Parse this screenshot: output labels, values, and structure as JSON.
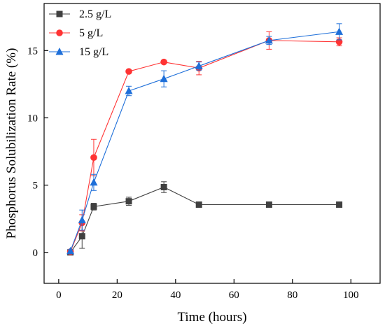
{
  "chart_data": {
    "type": "line",
    "title": "",
    "xlabel": "Time (hours)",
    "ylabel": "Phosphorus Solubilization Rate (%)",
    "xlim": [
      -5,
      110
    ],
    "ylim": [
      -2.3,
      18.5
    ],
    "xticks": [
      0,
      20,
      40,
      60,
      80,
      100
    ],
    "yticks": [
      0,
      5,
      10,
      15
    ],
    "grid": false,
    "legend_position": "top-left",
    "x": [
      4,
      8,
      12,
      24,
      36,
      48,
      72,
      96
    ],
    "series": [
      {
        "name": "2.5 g/L",
        "color": "#404040",
        "marker": "square",
        "values": [
          0.0,
          1.2,
          3.4,
          3.8,
          4.85,
          3.55,
          3.55,
          3.55
        ],
        "errors": [
          0.1,
          0.9,
          0.25,
          0.3,
          0.4,
          0.05,
          0.05,
          0.05
        ]
      },
      {
        "name": "5 g/L",
        "color": "#ff3333",
        "marker": "circle",
        "values": [
          0.05,
          2.2,
          7.05,
          13.45,
          14.15,
          13.7,
          15.75,
          15.65
        ],
        "errors": [
          0.1,
          0.6,
          1.35,
          0.1,
          0.1,
          0.5,
          0.65,
          0.3
        ]
      },
      {
        "name": "15 g/L",
        "color": "#1e6fd9",
        "marker": "triangle",
        "values": [
          0.1,
          2.4,
          5.2,
          12.0,
          12.9,
          13.85,
          15.75,
          16.4
        ],
        "errors": [
          0.1,
          0.75,
          0.6,
          0.35,
          0.6,
          0.3,
          0.3,
          0.6
        ]
      }
    ]
  }
}
